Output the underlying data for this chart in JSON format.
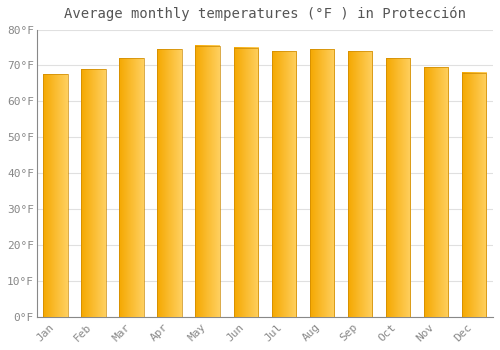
{
  "title": "Average monthly temperatures (°F ) in Protección",
  "months": [
    "Jan",
    "Feb",
    "Mar",
    "Apr",
    "May",
    "Jun",
    "Jul",
    "Aug",
    "Sep",
    "Oct",
    "Nov",
    "Dec"
  ],
  "values": [
    67.5,
    69.0,
    72.0,
    74.5,
    75.5,
    75.0,
    74.0,
    74.5,
    74.0,
    72.0,
    69.5,
    68.0
  ],
  "bar_color_left": "#F5A800",
  "bar_color_right": "#FFD060",
  "background_color": "#FFFFFF",
  "grid_color": "#E0E0E0",
  "title_color": "#555555",
  "tick_color": "#888888",
  "ylim": [
    0,
    80
  ],
  "yticks": [
    0,
    10,
    20,
    30,
    40,
    50,
    60,
    70,
    80
  ],
  "title_fontsize": 10,
  "tick_fontsize": 8,
  "figsize": [
    5.0,
    3.5
  ],
  "dpi": 100
}
